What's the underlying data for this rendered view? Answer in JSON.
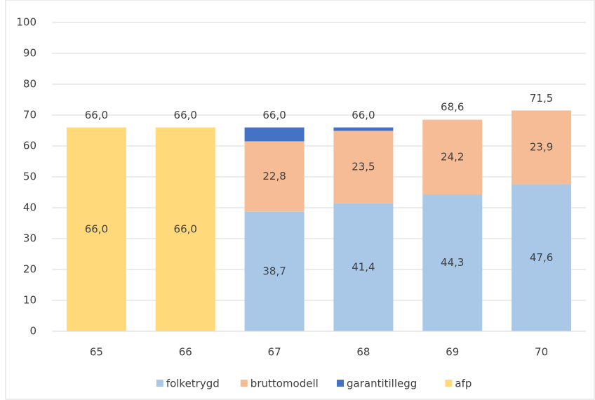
{
  "chart_data": {
    "type": "stacked_bar",
    "categories": [
      "65",
      "66",
      "67",
      "68",
      "69",
      "70"
    ],
    "series": [
      {
        "name": "folketrygd",
        "color": "#a9c8e8",
        "values": [
          null,
          null,
          38.7,
          41.4,
          44.3,
          47.6
        ],
        "value_labels": [
          null,
          null,
          "38,7",
          "41,4",
          "44,3",
          "47,6"
        ]
      },
      {
        "name": "bruttomodell",
        "color": "#f5bc96",
        "values": [
          null,
          null,
          22.8,
          23.5,
          24.2,
          23.9
        ],
        "value_labels": [
          null,
          null,
          "22,8",
          "23,5",
          "24,2",
          "23,9"
        ]
      },
      {
        "name": "garantitillegg",
        "color": "#4472c4",
        "values": [
          null,
          null,
          4.5,
          1.1,
          null,
          null
        ]
      },
      {
        "name": "afp",
        "color": "#ffd97a",
        "values": [
          66.0,
          66.0,
          null,
          null,
          null,
          null
        ],
        "value_labels": [
          "66,0",
          "66,0",
          null,
          null,
          null,
          null
        ]
      }
    ],
    "totals": {
      "values": [
        66.0,
        66.0,
        66.0,
        66.0,
        68.6,
        71.5
      ],
      "value_labels": [
        "66,0",
        "66,0",
        "66,0",
        "66,0",
        "68,6",
        "71,5"
      ]
    },
    "ylim": [
      0,
      100
    ],
    "yticks": [
      0,
      10,
      20,
      30,
      40,
      50,
      60,
      70,
      80,
      90,
      100
    ],
    "grid": true,
    "legend": "bottom"
  }
}
